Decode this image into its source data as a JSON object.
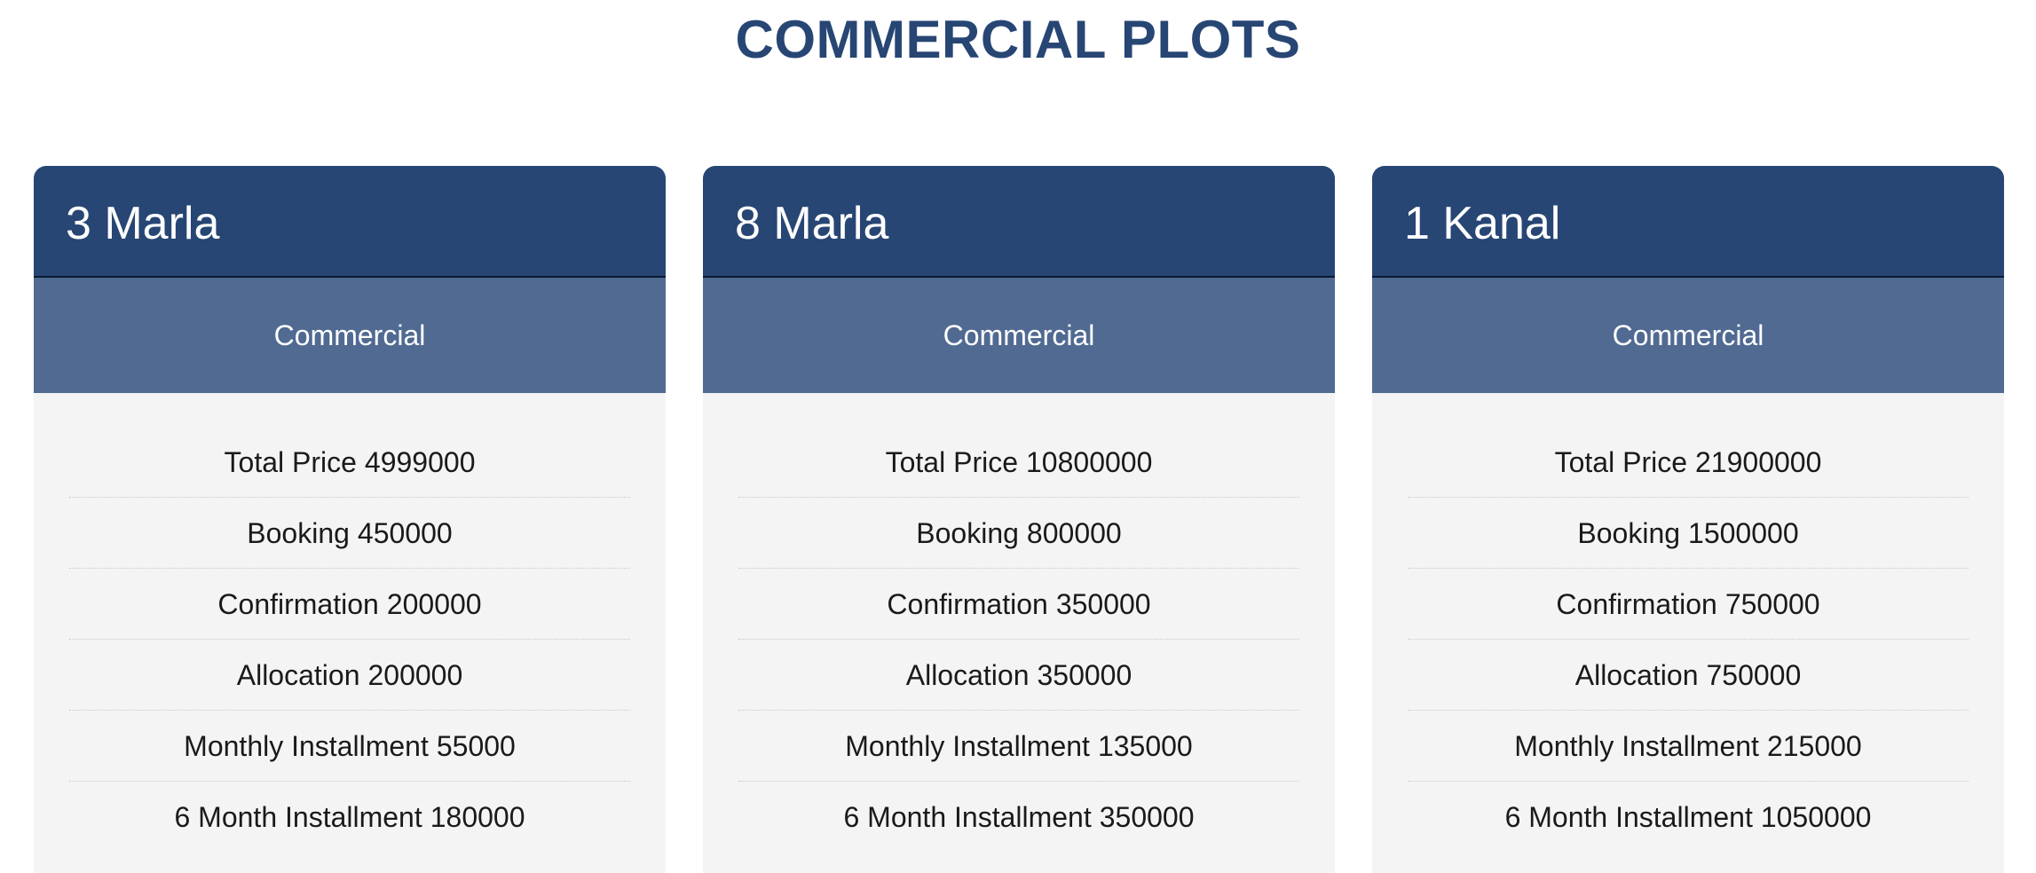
{
  "page": {
    "title": "COMMERCIAL PLOTS"
  },
  "colors": {
    "header": "#274674",
    "subheader": "#506a92",
    "body": "#f4f4f4",
    "title": "#274674"
  },
  "cards": [
    {
      "title": "3 Marla",
      "category": "Commercial",
      "rows": [
        {
          "label": "Total Price",
          "value": "4999000"
        },
        {
          "label": "Booking",
          "value": "450000"
        },
        {
          "label": "Confirmation",
          "value": "200000"
        },
        {
          "label": "Allocation",
          "value": "200000"
        },
        {
          "label": "Monthly Installment",
          "value": "55000"
        },
        {
          "label": "6 Month Installment",
          "value": "180000"
        }
      ]
    },
    {
      "title": "8 Marla",
      "category": "Commercial",
      "rows": [
        {
          "label": "Total Price",
          "value": "10800000"
        },
        {
          "label": "Booking",
          "value": "800000"
        },
        {
          "label": "Confirmation",
          "value": "350000"
        },
        {
          "label": "Allocation",
          "value": "350000"
        },
        {
          "label": "Monthly Installment",
          "value": "135000"
        },
        {
          "label": "6 Month Installment",
          "value": "350000"
        }
      ]
    },
    {
      "title": "1 Kanal",
      "category": "Commercial",
      "rows": [
        {
          "label": "Total Price",
          "value": "21900000"
        },
        {
          "label": "Booking",
          "value": "1500000"
        },
        {
          "label": "Confirmation",
          "value": "750000"
        },
        {
          "label": "Allocation",
          "value": "750000"
        },
        {
          "label": "Monthly Installment",
          "value": "215000"
        },
        {
          "label": "6 Month Installment",
          "value": "1050000"
        }
      ]
    }
  ]
}
